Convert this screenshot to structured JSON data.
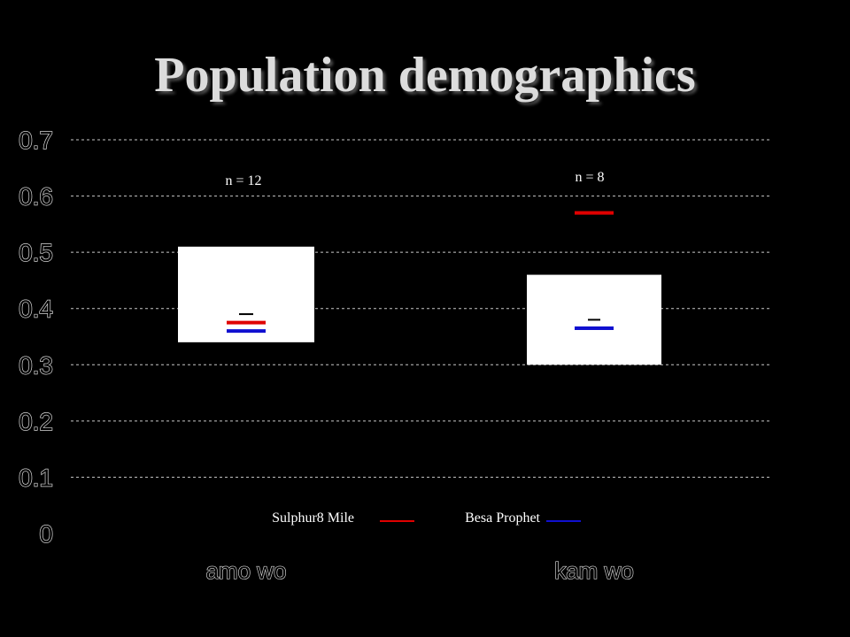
{
  "chart_data": {
    "type": "box",
    "title": "Population demographics",
    "ylim": [
      0,
      0.7
    ],
    "y_ticks": [
      "0.7",
      "0.6",
      "0.5",
      "0.4",
      "0.3",
      "0.2",
      "0.1",
      "0"
    ],
    "grid": true,
    "categories": [
      {
        "label": "amo wo",
        "n_label": "n = 12",
        "box_low": 0.34,
        "box_high": 0.51,
        "median": 0.39,
        "series": {
          "Sulphur8 Mile": 0.375,
          "Besa Prophet": 0.36
        }
      },
      {
        "label": "kam wo",
        "n_label": "n = 8",
        "box_low": 0.3,
        "box_high": 0.46,
        "median": 0.38,
        "series": {
          "Sulphur8 Mile": 0.57,
          "Besa Prophet": 0.365
        }
      }
    ],
    "legend": {
      "placement": "bottom-center",
      "entries": [
        {
          "name": "Sulphur8 Mile",
          "color": "#e00000"
        },
        {
          "name": "Besa Prophet",
          "color": "#1010d0"
        }
      ]
    },
    "colors": {
      "background": "#000000",
      "grid": "#c8c8c8",
      "box": "#ffffff",
      "title": "#d8d8d8",
      "median": "#000000"
    }
  }
}
